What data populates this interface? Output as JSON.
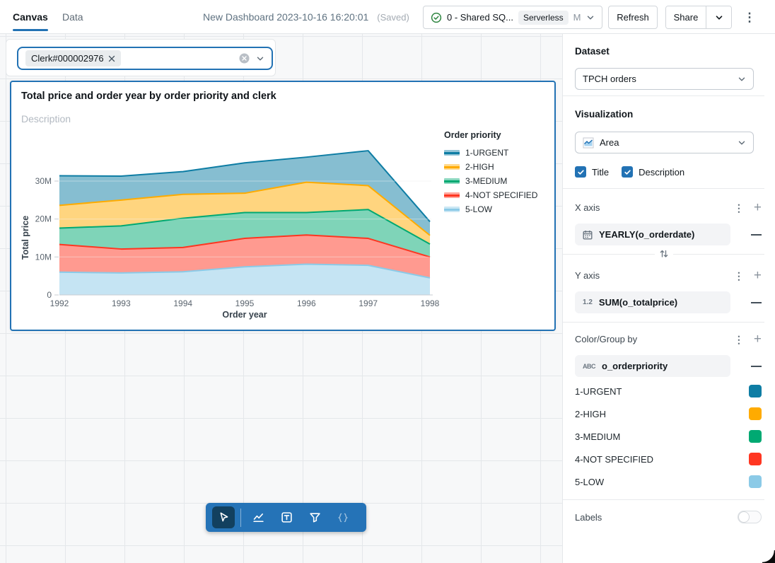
{
  "header": {
    "tabs": [
      {
        "label": "Canvas",
        "active": true
      },
      {
        "label": "Data",
        "active": false
      }
    ],
    "title": "New Dashboard 2023-10-16 16:20:01",
    "saved_status": "(Saved)",
    "warehouse": {
      "name": "0 - Shared SQ...",
      "badge": "Serverless",
      "size": "M"
    },
    "refresh_label": "Refresh",
    "share_label": "Share"
  },
  "canvas": {
    "filter": {
      "chip_label": "Clerk#000002976"
    },
    "widget": {
      "title": "Total price and order year by order priority and clerk",
      "description_placeholder": "Description"
    },
    "toolbar": {
      "tools": [
        "select",
        "line-chart",
        "text-box",
        "filter",
        "code"
      ]
    }
  },
  "chart_data": {
    "type": "area",
    "stacked": true,
    "stack_order": "bottom-to-top: 5-LOW, 4-NOT SPECIFIED, 3-MEDIUM, 2-HIGH, 1-URGENT",
    "title": "Total price and order year by order priority and clerk",
    "xlabel": "Order year",
    "ylabel": "Total price",
    "legend_title": "Order priority",
    "legend_position": "right",
    "categories": [
      "1992",
      "1993",
      "1994",
      "1995",
      "1996",
      "1997",
      "1998"
    ],
    "values_unit": "millions",
    "yticks": [
      "0",
      "10M",
      "20M",
      "30M"
    ],
    "ytick_values": [
      0,
      10,
      20,
      30
    ],
    "ylim": [
      0,
      39
    ],
    "grid": true,
    "series": [
      {
        "name": "1-URGENT",
        "color": "#0E7DA4",
        "values": [
          7.8,
          6.3,
          6.0,
          8.0,
          6.6,
          9.2,
          3.6
        ]
      },
      {
        "name": "2-HIGH",
        "color": "#FFAB00",
        "values": [
          6.0,
          6.8,
          6.3,
          5.1,
          8.0,
          6.3,
          2.3
        ]
      },
      {
        "name": "3-MEDIUM",
        "color": "#00A972",
        "values": [
          4.3,
          6.1,
          7.7,
          6.8,
          5.9,
          7.6,
          3.4
        ]
      },
      {
        "name": "4-NOT SPECIFIED",
        "color": "#FF3621",
        "values": [
          7.3,
          6.3,
          6.4,
          7.5,
          7.7,
          7.1,
          5.5
        ]
      },
      {
        "name": "5-LOW",
        "color": "#8BCAE7",
        "values": [
          6.0,
          5.8,
          6.1,
          7.4,
          8.1,
          7.8,
          4.5
        ]
      }
    ]
  },
  "sidebar": {
    "dataset": {
      "label": "Dataset",
      "value": "TPCH orders"
    },
    "visualization": {
      "label": "Visualization",
      "value": "Area"
    },
    "title_checkbox": "Title",
    "description_checkbox": "Description",
    "x_axis": {
      "label": "X axis",
      "field": "YEARLY(o_orderdate)"
    },
    "y_axis": {
      "label": "Y axis",
      "field": "SUM(o_totalprice)",
      "field_icon": "1.2"
    },
    "color_group": {
      "label": "Color/Group by",
      "field": "o_orderpriority",
      "field_icon": "ABC",
      "categories": [
        {
          "label": "1-URGENT",
          "color": "#0E7DA4"
        },
        {
          "label": "2-HIGH",
          "color": "#FFAB00"
        },
        {
          "label": "3-MEDIUM",
          "color": "#00A972"
        },
        {
          "label": "4-NOT SPECIFIED",
          "color": "#FF3621"
        },
        {
          "label": "5-LOW",
          "color": "#8BCAE7"
        }
      ]
    },
    "labels_toggle": {
      "label": "Labels",
      "enabled": false
    }
  }
}
